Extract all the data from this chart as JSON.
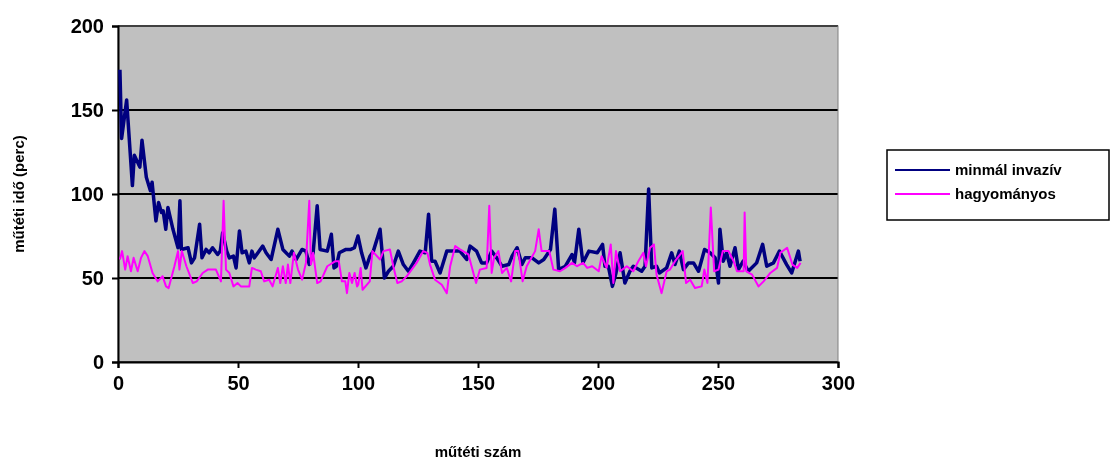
{
  "chart_data": {
    "type": "line",
    "xlabel": "műtéti szám",
    "ylabel": "műtéti idő (perc)",
    "xlim": [
      0,
      300
    ],
    "xticks": [
      0,
      50,
      100,
      150,
      200,
      250,
      300
    ],
    "ylim": [
      0,
      200
    ],
    "yticks": [
      0,
      50,
      100,
      150,
      200
    ],
    "grid": "y",
    "legend": "right",
    "marker": "none",
    "line_style": "solid",
    "series": [
      {
        "name": "minmál invazív",
        "color": "#000080",
        "x": [
          0.8,
          1.5,
          3.6,
          6,
          6.8,
          9.1,
          10,
          11.8,
          13.5,
          14.2,
          15.8,
          16.9,
          18.1,
          18.8,
          19.9,
          20.8,
          22.9,
          25,
          25.8,
          26.4,
          29.2,
          30.6,
          31.9,
          34,
          35,
          36.7,
          38,
          39.4,
          41.5,
          42.6,
          43.6,
          45.3,
          46.4,
          48.1,
          49.2,
          50.6,
          51.7,
          53.3,
          54.7,
          55.8,
          56.8,
          60.3,
          61.7,
          63.8,
          66.6,
          68.7,
          71.4,
          72.5,
          74.2,
          76.7,
          78.3,
          79.7,
          81.3,
          83,
          84.2,
          87.2,
          88.9,
          90,
          91,
          92.2,
          95,
          97,
          98.5,
          100,
          101.5,
          103.3,
          105,
          106.4,
          109.2,
          111,
          112.7,
          114.7,
          116.8,
          118.9,
          121,
          123.1,
          125.8,
          128,
          129.4,
          130.7,
          132.1,
          134.2,
          137,
          142.5,
          145.3,
          146.7,
          149.4,
          151.5,
          153.6,
          155.7,
          157.8,
          160,
          162.8,
          164.2,
          166.3,
          168.3,
          169.7,
          172.5,
          175.3,
          177.4,
          180.2,
          182,
          183.6,
          186.4,
          189.2,
          190.2,
          192,
          193.7,
          196.2,
          199.7,
          201.9,
          202.9,
          204.3,
          206,
          207.5,
          209.2,
          211.2,
          213.3,
          214.7,
          218.2,
          219.6,
          221.1,
          222.4,
          224.4,
          225.6,
          228.6,
          230.7,
          232.1,
          233.9,
          235.6,
          237.7,
          239.8,
          241.9,
          244.4,
          246.7,
          248.8,
          250.2,
          250.8,
          252.2,
          253.6,
          255,
          257.1,
          258.5,
          260.5,
          262.6,
          266.1,
          268.6,
          270.3,
          273.1,
          275.6,
          278.6,
          280.7,
          283.5,
          284.2
        ],
        "values": [
          174,
          133,
          156,
          105,
          123,
          116,
          132,
          110,
          102,
          107,
          84,
          95,
          89,
          90,
          79,
          92,
          79,
          68,
          96,
          67,
          68,
          59,
          62,
          82,
          62,
          67,
          65,
          68,
          64,
          66,
          77,
          66,
          62,
          63,
          56,
          78,
          65,
          66,
          59,
          66,
          62,
          69,
          65,
          61,
          79,
          67,
          63,
          66,
          61,
          67,
          66,
          58,
          65,
          93,
          67,
          66,
          76,
          56,
          57,
          65,
          67,
          67,
          68,
          75,
          65,
          56,
          63,
          66,
          79,
          50,
          54,
          57,
          66,
          58,
          54,
          59,
          66,
          65,
          88,
          60,
          60,
          53,
          66,
          66,
          61,
          69,
          66,
          59,
          59,
          66,
          62,
          57,
          58,
          63,
          68,
          58,
          62,
          62,
          59,
          61,
          67,
          91,
          55,
          57,
          64,
          59,
          79,
          59,
          66,
          65,
          70,
          57,
          57,
          45,
          53,
          65,
          47,
          54,
          57,
          54,
          57,
          103,
          56,
          57,
          53,
          56,
          65,
          58,
          66,
          55,
          59,
          59,
          54,
          67,
          65,
          62,
          47,
          79,
          60,
          65,
          57,
          68,
          55,
          60,
          54,
          59,
          70,
          57,
          59,
          66,
          58,
          53,
          66,
          60
        ]
      },
      {
        "name": "hagyományos",
        "color": "#ff00ff",
        "x": [
          0.8,
          1.7,
          3,
          4,
          5.4,
          6.5,
          8.2,
          9.6,
          11,
          12.4,
          14.4,
          16.5,
          18.6,
          20,
          21.1,
          23.5,
          25,
          25.6,
          26.6,
          28.5,
          31.2,
          32.8,
          35.3,
          37.4,
          40.8,
          42.9,
          44,
          45,
          46.4,
          48.1,
          49.8,
          51.2,
          54.7,
          55.8,
          57.4,
          59.5,
          60.9,
          63,
          64.4,
          66.6,
          67.6,
          68.7,
          69.9,
          70.8,
          71.8,
          73.3,
          75,
          76.7,
          78.3,
          79.7,
          80.4,
          81.3,
          83,
          84.4,
          87.2,
          90.6,
          92,
          93.3,
          94.7,
          95.4,
          96.4,
          97.5,
          98.6,
          99.6,
          100.1,
          101.1,
          101.9,
          104.9,
          106,
          109.2,
          110.6,
          113.3,
          114.7,
          116.4,
          118.2,
          120.3,
          124.4,
          127.2,
          128.9,
          130,
          132.1,
          134.9,
          137,
          138.4,
          140.5,
          142.5,
          146,
          149.2,
          150.8,
          153.6,
          154.7,
          155.7,
          156.7,
          158.5,
          160,
          162,
          163.8,
          165.5,
          166.8,
          168.6,
          170.3,
          173.8,
          175.3,
          176.5,
          179.7,
          181.4,
          184.2,
          186.4,
          189.2,
          191.3,
          193.8,
          195.5,
          197.6,
          200.3,
          201.5,
          203.6,
          205.3,
          206.4,
          207.5,
          209.2,
          212,
          214.7,
          216.8,
          218.9,
          220,
          221.7,
          223.3,
          224.4,
          226.5,
          228.6,
          230,
          232.1,
          235.3,
          236.7,
          238.4,
          240.4,
          243.2,
          244.3,
          245.6,
          247,
          248.4,
          250.2,
          252,
          254.4,
          256.5,
          257.9,
          260.7,
          261.1,
          261.8,
          264.2,
          266.9,
          269,
          271.8,
          274.6,
          276,
          278.8,
          281,
          283,
          284.4
        ],
        "values": [
          61,
          66,
          55,
          63,
          54,
          62,
          54,
          62,
          66,
          63,
          53,
          48,
          51,
          45,
          44,
          57,
          66,
          55,
          66,
          57,
          47,
          48,
          53,
          55,
          55,
          48,
          96,
          55,
          53,
          45,
          47,
          45,
          45,
          56,
          55,
          54,
          48,
          49,
          45,
          56,
          47,
          57,
          47,
          58,
          47,
          65,
          55,
          49,
          59,
          96,
          58,
          65,
          47,
          48,
          57,
          60,
          60,
          48,
          48,
          41,
          53,
          47,
          53,
          45,
          46,
          56,
          43,
          48,
          66,
          61,
          66,
          67,
          57,
          47,
          48,
          51,
          59,
          66,
          65,
          58,
          49,
          46,
          41,
          57,
          69,
          67,
          64,
          47,
          55,
          56,
          93,
          53,
          62,
          66,
          53,
          56,
          48,
          66,
          66,
          48,
          57,
          66,
          79,
          66,
          66,
          55,
          54,
          56,
          59,
          57,
          59,
          56,
          57,
          54,
          63,
          56,
          70,
          47,
          66,
          54,
          57,
          54,
          60,
          65,
          57,
          68,
          70,
          52,
          41,
          54,
          55,
          60,
          66,
          47,
          49,
          44,
          45,
          55,
          47,
          92,
          54,
          55,
          66,
          66,
          60,
          54,
          54,
          89,
          54,
          52,
          45,
          48,
          53,
          56,
          65,
          68,
          58,
          56,
          59
        ]
      }
    ]
  }
}
